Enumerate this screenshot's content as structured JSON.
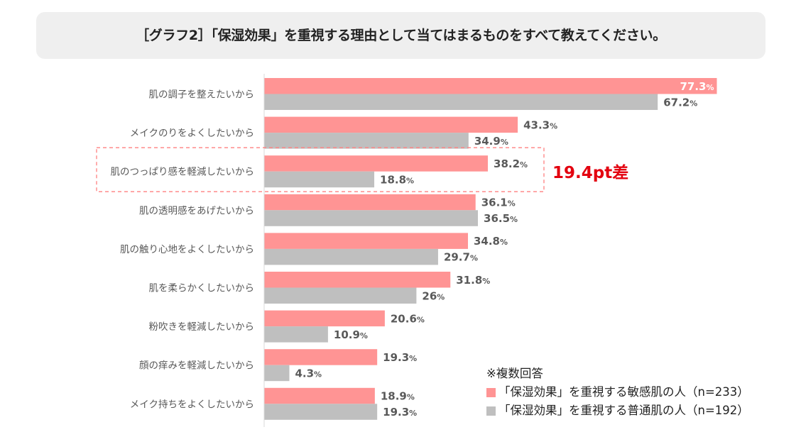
{
  "title": "［グラフ2］「保湿効果」を重視する理由として当てはまるものをすべて教えてください。",
  "colors": {
    "sensitive": "#ff9494",
    "normal": "#bfbfbf",
    "highlight_text": "#e3000f",
    "highlight_border": "#ff8080"
  },
  "callout": "19.4pt差",
  "legend": {
    "note": "※複数回答",
    "items": [
      {
        "label": "「保湿効果」を重視する敏感肌の人（n=233）",
        "color": "#ff9494"
      },
      {
        "label": "「保湿効果」を重視する普通肌の人（n=192）",
        "color": "#bfbfbf"
      }
    ]
  },
  "chart_data": {
    "type": "bar",
    "orientation": "horizontal",
    "categories": [
      "肌の調子を整えたいから",
      "メイクのりをよくしたいから",
      "肌のつっぱり感を軽減したいから",
      "肌の透明感をあげたいから",
      "肌の触り心地をよくしたいから",
      "肌を柔らかくしたいから",
      "粉吹きを軽減したいから",
      "顔の痒みを軽減したいから",
      "メイク持ちをよくしたいから"
    ],
    "series": [
      {
        "name": "「保湿効果」を重視する敏感肌の人（n=233）",
        "color": "#ff9494",
        "values": [
          77.3,
          43.3,
          38.2,
          36.1,
          34.8,
          31.8,
          20.6,
          19.3,
          18.9
        ],
        "labels": [
          "77.3",
          "43.3",
          "38.2",
          "36.1",
          "34.8",
          "31.8",
          "20.6",
          "19.3",
          "18.9"
        ]
      },
      {
        "name": "「保湿効果」を重視する普通肌の人（n=192）",
        "color": "#bfbfbf",
        "values": [
          67.2,
          34.9,
          18.8,
          36.5,
          29.7,
          26,
          10.9,
          4.3,
          19.3
        ],
        "labels": [
          "67.2",
          "34.9",
          "18.8",
          "36.5",
          "29.7",
          "26",
          "10.9",
          "4.3",
          "19.3"
        ]
      }
    ],
    "unit": "%",
    "xlim": [
      0,
      77.3
    ],
    "highlight_category": "肌のつっぱり感を軽減したいから",
    "grid": false
  }
}
